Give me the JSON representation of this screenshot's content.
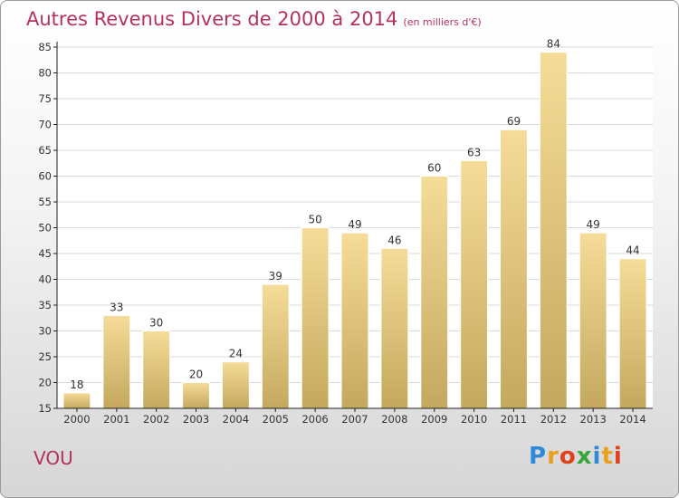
{
  "title": "Autres Revenus Divers de 2000 à 2014",
  "subtitle": "(en milliers d'€)",
  "city": "VOU",
  "logo_text": "Proxiti",
  "colors": {
    "title": "#b5325a",
    "bar_top": "#f5dc98",
    "bar_bottom": "#c4a85e",
    "axis": "#222222",
    "grid": "#d9d9d9"
  },
  "chart_data": {
    "type": "bar",
    "title": "Autres Revenus Divers de 2000 à 2014",
    "subtitle": "(en milliers d'€)",
    "categories": [
      "2000",
      "2001",
      "2002",
      "2003",
      "2004",
      "2005",
      "2006",
      "2007",
      "2008",
      "2009",
      "2010",
      "2011",
      "2012",
      "2013",
      "2014"
    ],
    "values": [
      18,
      33,
      30,
      20,
      24,
      39,
      50,
      49,
      46,
      60,
      63,
      69,
      84,
      49,
      44
    ],
    "ylim": [
      15,
      85
    ],
    "yticks": [
      15,
      20,
      25,
      30,
      35,
      40,
      45,
      50,
      55,
      60,
      65,
      70,
      75,
      80,
      85
    ],
    "grid": true,
    "legend": "none"
  }
}
